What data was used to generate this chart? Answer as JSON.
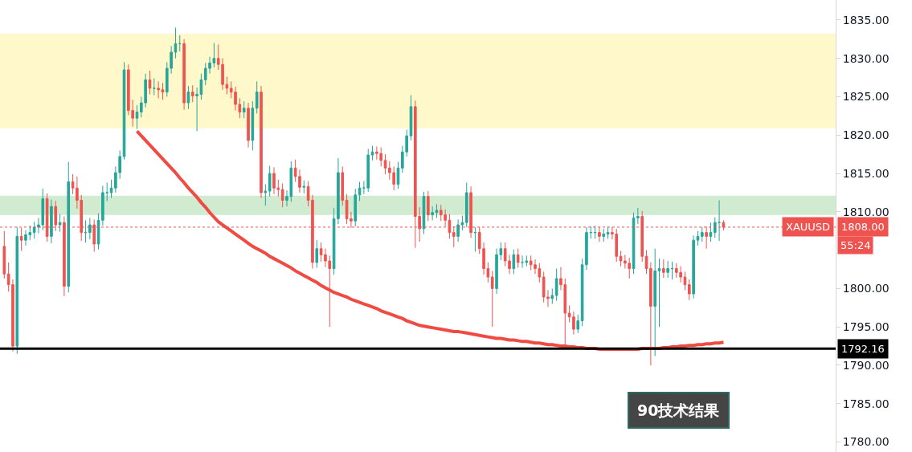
{
  "chart_data": {
    "type": "candlestick",
    "categories": [
      null,
      null,
      null,
      null,
      null,
      null,
      null,
      null,
      null,
      null,
      null,
      null,
      null,
      null,
      null,
      null,
      null,
      null,
      null,
      null,
      null,
      null,
      null,
      null,
      null,
      null,
      null,
      null,
      null,
      null,
      null,
      null,
      null,
      null,
      null,
      null,
      null,
      null,
      null,
      null,
      null,
      null,
      null,
      null,
      null,
      null,
      null,
      null,
      null,
      null,
      null,
      null,
      null,
      null,
      null,
      null,
      null,
      null,
      null,
      null,
      null,
      null,
      null,
      null,
      null,
      null,
      null,
      null,
      null,
      null,
      null,
      null,
      null,
      null,
      null,
      null,
      null,
      null,
      null,
      null,
      null,
      null,
      null,
      null,
      null,
      null,
      null,
      null,
      null,
      null,
      null,
      null,
      null,
      null,
      null,
      null,
      null,
      null,
      null,
      null,
      null,
      null,
      null,
      null,
      null,
      null,
      null,
      null,
      null,
      null,
      null,
      null,
      null,
      null,
      null,
      null,
      null,
      null,
      null,
      null,
      null,
      null,
      null,
      null,
      null,
      null,
      null,
      null,
      null,
      null,
      null,
      null,
      null,
      null,
      null,
      null,
      null,
      null,
      null,
      null,
      null,
      null,
      null,
      null,
      null,
      null,
      null,
      null,
      null,
      null,
      null,
      null,
      null,
      null,
      null,
      null,
      null,
      null,
      null,
      null,
      null,
      null,
      null,
      null,
      null,
      null,
      null,
      null,
      null
    ],
    "ohlc": [
      [
        1805.5,
        1807.5,
        1801.3,
        1801.9
      ],
      [
        1801.9,
        1803.4,
        1799.6,
        1800.5
      ],
      [
        1800.5,
        1801.2,
        1791.8,
        1792.5
      ],
      [
        1792.5,
        1808.0,
        1791.5,
        1806.8
      ],
      [
        1806.8,
        1807.9,
        1804.9,
        1806.3
      ],
      [
        1806.3,
        1807.6,
        1805.6,
        1807.0
      ],
      [
        1807.0,
        1808.2,
        1806.3,
        1807.3
      ],
      [
        1807.3,
        1808.7,
        1806.5,
        1808.0
      ],
      [
        1808.0,
        1809.2,
        1807.2,
        1808.3
      ],
      [
        1808.3,
        1813.0,
        1807.6,
        1811.7
      ],
      [
        1811.7,
        1812.4,
        1806.1,
        1806.8
      ],
      [
        1806.8,
        1811.6,
        1805.9,
        1810.7
      ],
      [
        1810.7,
        1811.4,
        1807.5,
        1808.3
      ],
      [
        1808.3,
        1809.7,
        1807.4,
        1808.6
      ],
      [
        1808.6,
        1809.4,
        1799.0,
        1800.3
      ],
      [
        1800.3,
        1816.5,
        1799.5,
        1813.9
      ],
      [
        1813.9,
        1814.9,
        1812.3,
        1813.1
      ],
      [
        1813.1,
        1814.6,
        1810.4,
        1811.5
      ],
      [
        1811.5,
        1812.2,
        1806.2,
        1807.3
      ],
      [
        1807.3,
        1808.9,
        1806.0,
        1807.3
      ],
      [
        1807.3,
        1809.2,
        1806.4,
        1808.3
      ],
      [
        1808.3,
        1809.0,
        1804.8,
        1805.8
      ],
      [
        1805.8,
        1809.8,
        1805.1,
        1808.9
      ],
      [
        1808.9,
        1813.4,
        1808.2,
        1812.5
      ],
      [
        1812.5,
        1813.8,
        1811.4,
        1812.5
      ],
      [
        1812.5,
        1814.2,
        1811.8,
        1813.1
      ],
      [
        1813.1,
        1815.9,
        1812.5,
        1815.1
      ],
      [
        1815.1,
        1818.0,
        1814.3,
        1817.2
      ],
      [
        1817.2,
        1829.5,
        1816.8,
        1828.5
      ],
      [
        1828.5,
        1829.2,
        1822.6,
        1823.2
      ],
      [
        1823.2,
        1824.6,
        1821.1,
        1822.2
      ],
      [
        1822.2,
        1823.9,
        1820.8,
        1823.0
      ],
      [
        1823.0,
        1825.0,
        1822.3,
        1824.2
      ],
      [
        1824.2,
        1828.0,
        1823.6,
        1827.2
      ],
      [
        1827.2,
        1828.4,
        1825.3,
        1826.1
      ],
      [
        1826.1,
        1827.4,
        1825.2,
        1826.1
      ],
      [
        1826.1,
        1827.0,
        1824.8,
        1825.9
      ],
      [
        1825.9,
        1826.8,
        1824.6,
        1825.6
      ],
      [
        1825.6,
        1829.5,
        1825.0,
        1828.7
      ],
      [
        1828.7,
        1831.6,
        1828.0,
        1830.8
      ],
      [
        1830.8,
        1834.0,
        1830.0,
        1831.9
      ],
      [
        1831.9,
        1833.0,
        1830.9,
        1831.9
      ],
      [
        1831.9,
        1832.5,
        1823.3,
        1824.2
      ],
      [
        1824.2,
        1826.4,
        1823.4,
        1825.6
      ],
      [
        1825.6,
        1826.5,
        1824.3,
        1825.1
      ],
      [
        1825.1,
        1826.2,
        1820.5,
        1825.3
      ],
      [
        1825.3,
        1828.0,
        1824.6,
        1827.2
      ],
      [
        1827.2,
        1829.4,
        1826.5,
        1828.7
      ],
      [
        1828.7,
        1830.2,
        1828.0,
        1829.4
      ],
      [
        1829.4,
        1832.0,
        1828.8,
        1830.0
      ],
      [
        1830.0,
        1831.8,
        1828.5,
        1829.2
      ],
      [
        1829.2,
        1830.0,
        1825.9,
        1826.6
      ],
      [
        1826.6,
        1827.6,
        1825.3,
        1826.1
      ],
      [
        1826.1,
        1827.0,
        1824.8,
        1825.6
      ],
      [
        1825.6,
        1826.3,
        1823.2,
        1824.0
      ],
      [
        1824.0,
        1824.8,
        1822.2,
        1823.0
      ],
      [
        1823.0,
        1824.4,
        1822.2,
        1823.5
      ],
      [
        1823.5,
        1824.2,
        1818.4,
        1819.3
      ],
      [
        1819.3,
        1824.4,
        1818.0,
        1823.5
      ],
      [
        1823.5,
        1827.0,
        1822.8,
        1825.6
      ],
      [
        1825.6,
        1826.4,
        1811.8,
        1812.5
      ],
      [
        1812.5,
        1813.6,
        1810.8,
        1812.7
      ],
      [
        1812.7,
        1816.0,
        1812.0,
        1815.0
      ],
      [
        1815.0,
        1815.8,
        1812.3,
        1813.1
      ],
      [
        1813.1,
        1814.2,
        1812.0,
        1812.9
      ],
      [
        1812.9,
        1813.7,
        1810.6,
        1811.5
      ],
      [
        1811.5,
        1812.8,
        1810.7,
        1812.0
      ],
      [
        1812.0,
        1816.6,
        1811.3,
        1815.7
      ],
      [
        1815.7,
        1816.8,
        1813.9,
        1814.6
      ],
      [
        1814.6,
        1815.5,
        1812.5,
        1813.2
      ],
      [
        1813.2,
        1814.1,
        1812.4,
        1813.3
      ],
      [
        1813.3,
        1814.0,
        1810.7,
        1811.5
      ],
      [
        1811.5,
        1812.2,
        1802.6,
        1803.4
      ],
      [
        1803.4,
        1806.3,
        1802.7,
        1805.2
      ],
      [
        1805.2,
        1806.0,
        1803.5,
        1804.4
      ],
      [
        1804.4,
        1805.2,
        1802.8,
        1803.6
      ],
      [
        1803.6,
        1804.3,
        1795.0,
        1802.6
      ],
      [
        1802.6,
        1810.5,
        1801.8,
        1809.1
      ],
      [
        1809.1,
        1817.0,
        1808.4,
        1815.1
      ],
      [
        1815.1,
        1815.9,
        1810.8,
        1811.5
      ],
      [
        1811.5,
        1812.3,
        1808.4,
        1809.1
      ],
      [
        1809.1,
        1810.0,
        1807.9,
        1808.8
      ],
      [
        1808.8,
        1813.0,
        1808.1,
        1812.2
      ],
      [
        1812.2,
        1813.9,
        1811.4,
        1813.1
      ],
      [
        1813.1,
        1814.0,
        1812.3,
        1813.1
      ],
      [
        1813.1,
        1818.2,
        1812.6,
        1817.4
      ],
      [
        1817.4,
        1818.6,
        1816.7,
        1817.8
      ],
      [
        1817.8,
        1818.5,
        1816.8,
        1817.6
      ],
      [
        1817.6,
        1818.4,
        1815.9,
        1816.7
      ],
      [
        1816.7,
        1817.5,
        1814.9,
        1815.7
      ],
      [
        1815.7,
        1816.6,
        1814.2,
        1815.1
      ],
      [
        1815.1,
        1815.9,
        1812.8,
        1813.6
      ],
      [
        1813.6,
        1816.5,
        1813.0,
        1815.7
      ],
      [
        1815.7,
        1818.6,
        1815.1,
        1817.8
      ],
      [
        1817.8,
        1820.7,
        1817.2,
        1819.9
      ],
      [
        1819.9,
        1825.2,
        1819.3,
        1823.7
      ],
      [
        1823.7,
        1824.5,
        1805.3,
        1809.4
      ],
      [
        1809.4,
        1810.6,
        1806.1,
        1807.8
      ],
      [
        1807.8,
        1812.6,
        1807.1,
        1812.0
      ],
      [
        1812.0,
        1812.7,
        1808.8,
        1809.6
      ],
      [
        1809.6,
        1810.7,
        1808.9,
        1809.9
      ],
      [
        1809.9,
        1811.0,
        1809.2,
        1810.2
      ],
      [
        1810.2,
        1810.9,
        1808.8,
        1809.6
      ],
      [
        1809.6,
        1810.3,
        1808.1,
        1808.9
      ],
      [
        1808.9,
        1809.7,
        1806.5,
        1807.3
      ],
      [
        1807.3,
        1808.1,
        1805.4,
        1806.8
      ],
      [
        1806.8,
        1809.0,
        1806.1,
        1808.3
      ],
      [
        1808.3,
        1809.5,
        1807.6,
        1808.6
      ],
      [
        1808.6,
        1813.8,
        1808.0,
        1812.5
      ],
      [
        1812.5,
        1813.3,
        1806.6,
        1807.3
      ],
      [
        1807.3,
        1808.0,
        1804.8,
        1807.3
      ],
      [
        1807.3,
        1808.0,
        1804.5,
        1805.2
      ],
      [
        1805.2,
        1806.0,
        1801.8,
        1802.6
      ],
      [
        1802.6,
        1803.4,
        1800.8,
        1801.5
      ],
      [
        1801.5,
        1802.3,
        1795.0,
        1800.0
      ],
      [
        1800.0,
        1805.2,
        1799.3,
        1804.4
      ],
      [
        1804.4,
        1806.0,
        1803.7,
        1805.2
      ],
      [
        1805.2,
        1806.0,
        1802.9,
        1803.6
      ],
      [
        1803.6,
        1804.4,
        1801.9,
        1802.6
      ],
      [
        1802.6,
        1805.1,
        1801.9,
        1804.4
      ],
      [
        1804.4,
        1805.2,
        1802.7,
        1803.4
      ],
      [
        1803.4,
        1804.3,
        1802.7,
        1803.4
      ],
      [
        1803.4,
        1804.3,
        1802.9,
        1803.6
      ],
      [
        1803.6,
        1804.3,
        1802.4,
        1803.1
      ],
      [
        1803.1,
        1803.8,
        1801.9,
        1802.6
      ],
      [
        1802.6,
        1803.3,
        1800.8,
        1801.5
      ],
      [
        1801.5,
        1802.2,
        1798.2,
        1798.9
      ],
      [
        1798.9,
        1799.8,
        1797.6,
        1798.7
      ],
      [
        1798.7,
        1800.0,
        1798.0,
        1799.1
      ],
      [
        1799.1,
        1802.6,
        1798.4,
        1801.3
      ],
      [
        1801.3,
        1802.8,
        1799.8,
        1800.5
      ],
      [
        1800.5,
        1801.3,
        1792.2,
        1796.8
      ],
      [
        1796.8,
        1797.8,
        1795.6,
        1796.3
      ],
      [
        1796.3,
        1797.0,
        1794.0,
        1794.7
      ],
      [
        1794.7,
        1796.6,
        1794.2,
        1795.8
      ],
      [
        1795.8,
        1803.9,
        1795.1,
        1803.1
      ],
      [
        1803.1,
        1808.0,
        1802.4,
        1807.3
      ],
      [
        1807.3,
        1808.1,
        1806.5,
        1807.3
      ],
      [
        1807.3,
        1808.2,
        1806.5,
        1807.3
      ],
      [
        1807.3,
        1808.0,
        1806.1,
        1806.8
      ],
      [
        1806.8,
        1807.8,
        1806.1,
        1807.1
      ],
      [
        1807.1,
        1808.1,
        1806.5,
        1807.3
      ],
      [
        1807.3,
        1808.0,
        1806.4,
        1807.1
      ],
      [
        1807.1,
        1807.8,
        1803.5,
        1804.2
      ],
      [
        1804.2,
        1804.9,
        1802.9,
        1803.6
      ],
      [
        1803.6,
        1804.4,
        1802.6,
        1803.3
      ],
      [
        1803.3,
        1804.0,
        1801.3,
        1802.6
      ],
      [
        1802.6,
        1809.9,
        1801.9,
        1809.2
      ],
      [
        1809.2,
        1810.5,
        1808.4,
        1809.4
      ],
      [
        1809.4,
        1810.1,
        1803.5,
        1804.2
      ],
      [
        1804.2,
        1805.0,
        1801.9,
        1802.6
      ],
      [
        1802.6,
        1803.4,
        1790.0,
        1797.7
      ],
      [
        1797.7,
        1805.2,
        1791.2,
        1802.3
      ],
      [
        1802.3,
        1803.9,
        1795.0,
        1802.6
      ],
      [
        1802.6,
        1803.8,
        1801.4,
        1802.1
      ],
      [
        1802.1,
        1803.6,
        1801.4,
        1802.6
      ],
      [
        1802.6,
        1803.5,
        1801.2,
        1802.6
      ],
      [
        1802.6,
        1803.3,
        1801.4,
        1802.1
      ],
      [
        1802.1,
        1802.9,
        1800.8,
        1801.5
      ],
      [
        1801.5,
        1802.2,
        1799.8,
        1800.5
      ],
      [
        1800.5,
        1801.2,
        1798.5,
        1799.3
      ],
      [
        1799.3,
        1806.9,
        1798.7,
        1806.3
      ],
      [
        1806.3,
        1807.5,
        1805.6,
        1806.8
      ],
      [
        1806.8,
        1808.0,
        1806.1,
        1807.3
      ],
      [
        1807.3,
        1808.1,
        1805.2,
        1806.8
      ],
      [
        1806.8,
        1808.6,
        1806.1,
        1807.3
      ],
      [
        1807.3,
        1809.3,
        1806.6,
        1808.6
      ],
      [
        1808.6,
        1811.5,
        1806.2,
        1808.6
      ],
      [
        1808.6,
        1808.9,
        1807.6,
        1808.0
      ]
    ],
    "series": [
      {
        "type": "line",
        "color": "#ef4b43",
        "values": [
          null,
          null,
          null,
          null,
          null,
          null,
          null,
          null,
          null,
          null,
          null,
          null,
          null,
          null,
          null,
          null,
          null,
          null,
          null,
          null,
          null,
          null,
          null,
          null,
          null,
          null,
          null,
          null,
          null,
          null,
          null,
          1820.5,
          1819.9,
          1819.3,
          1818.7,
          1818.1,
          1817.5,
          1816.9,
          1816.3,
          1815.7,
          1815.1,
          1814.4,
          1813.8,
          1813.1,
          1812.5,
          1811.9,
          1811.2,
          1810.6,
          1809.9,
          1809.3,
          1808.7,
          1808.3,
          1807.9,
          1807.5,
          1807.1,
          1806.7,
          1806.3,
          1805.9,
          1805.5,
          1805.2,
          1804.9,
          1804.6,
          1804.2,
          1803.9,
          1803.6,
          1803.3,
          1803.0,
          1802.7,
          1802.3,
          1802.0,
          1801.7,
          1801.4,
          1801.1,
          1800.8,
          1800.4,
          1800.1,
          1799.8,
          1799.5,
          1799.3,
          1799.1,
          1798.9,
          1798.6,
          1798.4,
          1798.2,
          1798.0,
          1797.8,
          1797.6,
          1797.4,
          1797.1,
          1796.9,
          1796.7,
          1796.5,
          1796.3,
          1796.1,
          1795.8,
          1795.6,
          1795.4,
          1795.2,
          1795.1,
          1795.0,
          1794.9,
          1794.8,
          1794.7,
          1794.6,
          1794.5,
          1794.4,
          1794.4,
          1794.3,
          1794.2,
          1794.1,
          1794.0,
          1793.9,
          1793.8,
          1793.7,
          1793.6,
          1793.5,
          1793.5,
          1793.4,
          1793.3,
          1793.3,
          1793.2,
          1793.1,
          1793.1,
          1793.0,
          1792.9,
          1792.9,
          1792.8,
          1792.7,
          1792.7,
          1792.6,
          1792.5,
          1792.5,
          1792.4,
          1792.4,
          1792.3,
          1792.3,
          1792.2,
          1792.2,
          1792.2,
          1792.1,
          1792.1,
          1792.1,
          1792.1,
          1792.1,
          1792.1,
          1792.1,
          1792.1,
          1792.1,
          1792.1,
          1792.2,
          1792.2,
          1792.2,
          1792.2,
          1792.2,
          1792.3,
          1792.3,
          1792.4,
          1792.4,
          1792.5,
          1792.5,
          1792.6,
          1792.6,
          1792.7,
          1792.7,
          1792.8,
          1792.8,
          1792.9,
          1792.9,
          1793.0
        ]
      }
    ],
    "ylim": [
      1778.7,
      1837.6
    ],
    "yticks": [
      {
        "value": 1780,
        "label": "1780.00"
      },
      {
        "value": 1785,
        "label": "1785.00"
      },
      {
        "value": 1790,
        "label": "1790.00"
      },
      {
        "value": 1795,
        "label": "1795.00"
      },
      {
        "value": 1800,
        "label": "1800.00"
      },
      {
        "value": 1810,
        "label": "1810.00"
      },
      {
        "value": 1815,
        "label": "1815.00"
      },
      {
        "value": 1820,
        "label": "1820.00"
      },
      {
        "value": 1825,
        "label": "1825.00"
      },
      {
        "value": 1830,
        "label": "1830.00"
      },
      {
        "value": 1835,
        "label": "1835.00"
      }
    ],
    "tick_labels": "y",
    "grid": false,
    "ref_lines": [
      {
        "axis": "y",
        "value": 1792.16,
        "label": "1792.16",
        "color": "#000000",
        "line_style": "solid"
      },
      {
        "axis": "y",
        "value": 1808.0,
        "label": "1808.00",
        "color": "#ef5350",
        "line_style": "dotted"
      }
    ],
    "bands": [
      {
        "axis": "y",
        "from": 1820.9,
        "to": 1833.2,
        "color": "#fff2a0"
      },
      {
        "axis": "y",
        "from": 1809.6,
        "to": 1812.1,
        "color": "#a9dba8"
      }
    ],
    "annotations": [
      "XAUUSD",
      "55:24",
      "90技术结果"
    ]
  }
}
